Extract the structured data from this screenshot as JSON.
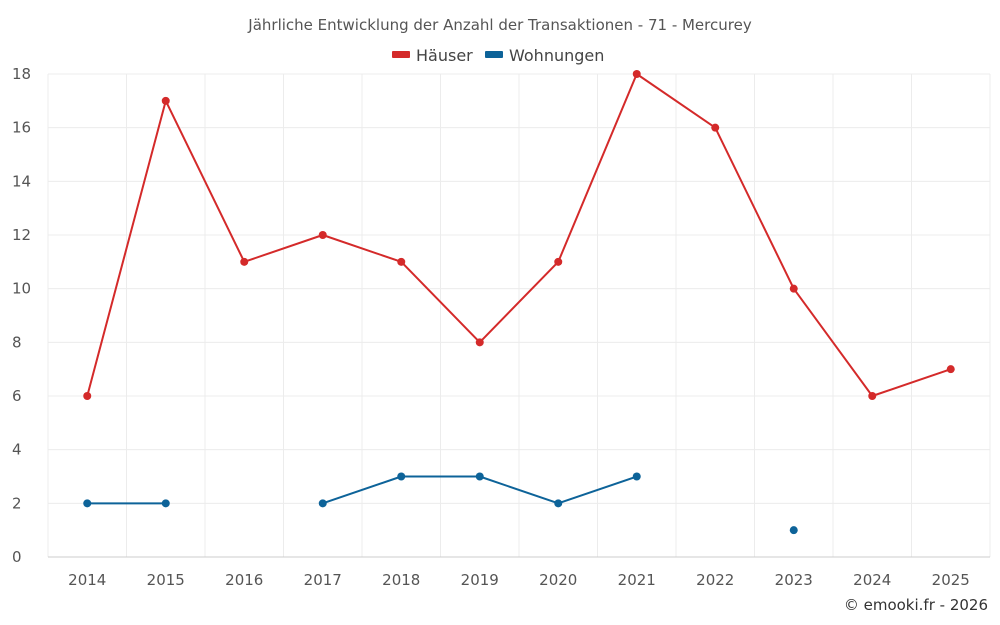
{
  "chart_data": {
    "type": "line",
    "title": "Jährliche Entwicklung der Anzahl der Transaktionen - 71 - Mercurey",
    "categories": [
      "2014",
      "2015",
      "2016",
      "2017",
      "2018",
      "2019",
      "2020",
      "2021",
      "2022",
      "2023",
      "2024",
      "2025"
    ],
    "series": [
      {
        "name": "Häuser",
        "color": "#d42a2a",
        "values": [
          6,
          17,
          11,
          12,
          11,
          8,
          11,
          18,
          16,
          10,
          6,
          7
        ]
      },
      {
        "name": "Wohnungen",
        "color": "#0d6399",
        "values": [
          2,
          2,
          null,
          2,
          3,
          3,
          2,
          3,
          null,
          1,
          null,
          null
        ]
      }
    ],
    "ylim": [
      0,
      18
    ],
    "yticks": [
      0,
      2,
      4,
      6,
      8,
      10,
      12,
      14,
      16,
      18
    ],
    "grid": true,
    "legend_position": "top-center",
    "xlabel": "",
    "ylabel": ""
  },
  "credit": "© emooki.fr - 2026"
}
